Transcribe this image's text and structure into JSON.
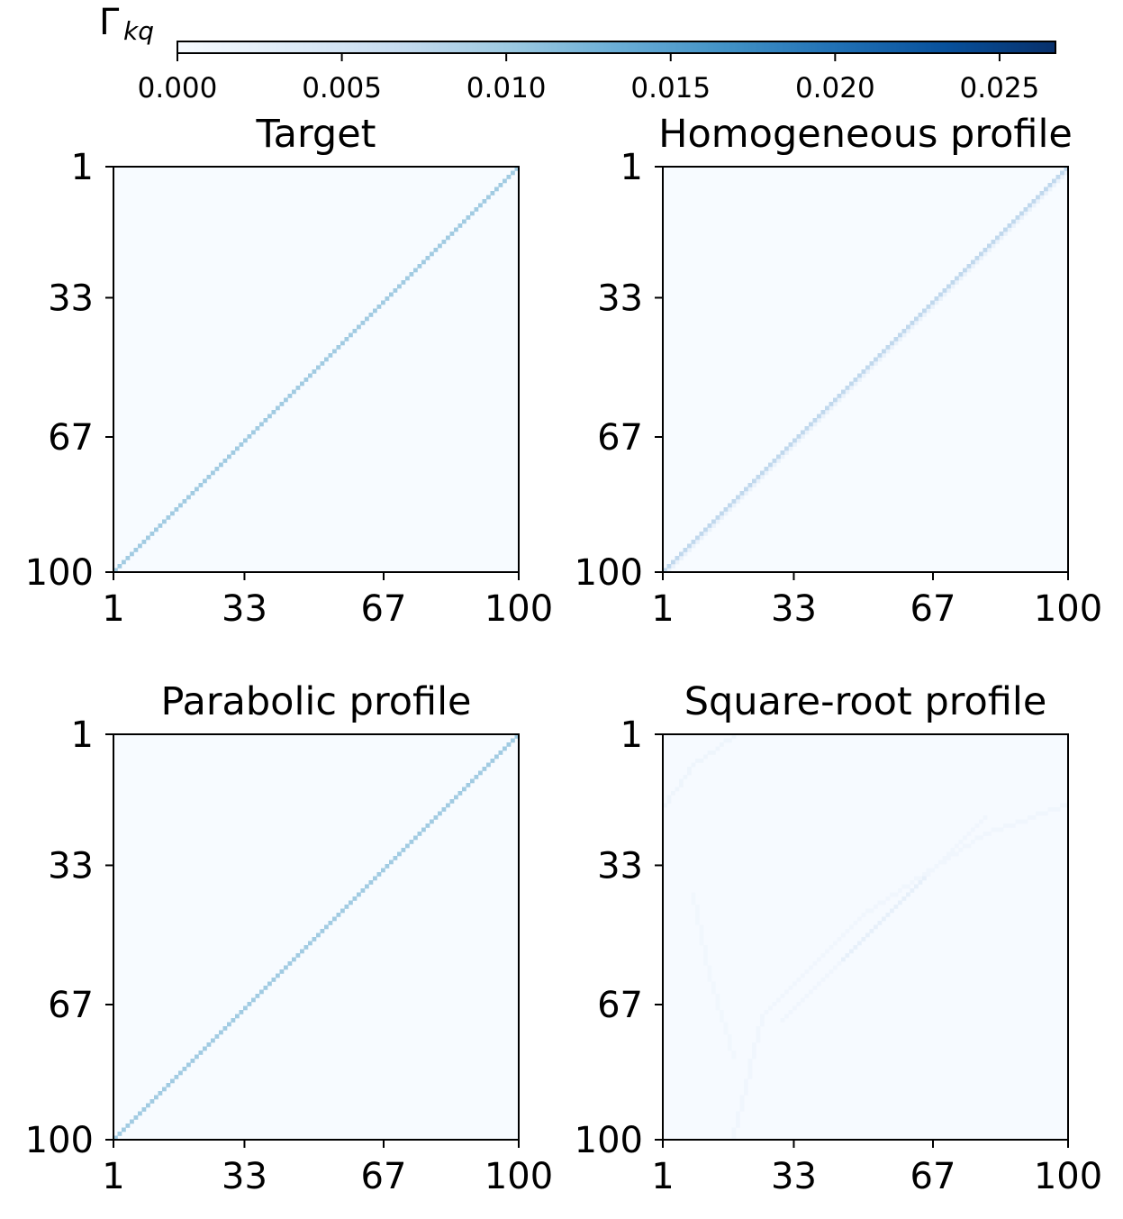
{
  "colorbar": {
    "label": "Γ",
    "label_subscript": "kq",
    "min": 0.0,
    "max": 0.0267,
    "ticks": [
      0.0,
      0.005,
      0.01,
      0.015,
      0.02,
      0.025
    ],
    "tick_labels": [
      "0.000",
      "0.005",
      "0.010",
      "0.015",
      "0.020",
      "0.025"
    ],
    "colormap": "Blues",
    "colors": {
      "low": "#f7fbff",
      "high": "#08306b"
    }
  },
  "chart_data": [
    {
      "type": "heatmap",
      "title": "Target",
      "matrix_size": 100,
      "x_ticks": [
        1,
        33,
        67,
        100
      ],
      "y_ticks": [
        1,
        33,
        67,
        100
      ],
      "y_inverted": true,
      "background_value": 0.0,
      "diagonal": {
        "kind": "main",
        "value": 0.0098
      },
      "off_diagonal_band": null,
      "arcs": []
    },
    {
      "type": "heatmap",
      "title": "Homogeneous profile",
      "matrix_size": 100,
      "x_ticks": [
        1,
        33,
        67,
        100
      ],
      "y_ticks": [
        1,
        33,
        67,
        100
      ],
      "y_inverted": true,
      "background_value": 0.0,
      "diagonal": {
        "kind": "main",
        "value": 0.0072
      },
      "off_diagonal_band": {
        "offset": 1,
        "value": 0.0018
      },
      "arcs": []
    },
    {
      "type": "heatmap",
      "title": "Parabolic profile",
      "matrix_size": 100,
      "x_ticks": [
        1,
        33,
        67,
        100
      ],
      "y_ticks": [
        1,
        33,
        67,
        100
      ],
      "y_inverted": true,
      "background_value": 0.0,
      "diagonal": {
        "kind": "main",
        "value": 0.0098
      },
      "off_diagonal_band": null,
      "arcs": []
    },
    {
      "type": "heatmap",
      "title": "Square-root profile",
      "matrix_size": 100,
      "x_ticks": [
        1,
        33,
        67,
        100
      ],
      "y_ticks": [
        1,
        33,
        67,
        100
      ],
      "y_inverted": true,
      "background_value": 0.0002,
      "diagonal": {
        "kind": "faint-center",
        "value": 0.0022,
        "from": 45,
        "to": 65
      },
      "off_diagonal_band": null,
      "arcs": [
        {
          "points": [
            [
              1,
              18
            ],
            [
              8,
              8
            ],
            [
              18,
              1
            ]
          ],
          "value": 0.0012
        },
        {
          "points": [
            [
              18,
              100
            ],
            [
              25,
              70
            ],
            [
              50,
              45
            ],
            [
              80,
              25
            ],
            [
              100,
              18
            ]
          ],
          "value": 0.001
        },
        {
          "points": [
            [
              8,
              40
            ],
            [
              12,
              60
            ],
            [
              18,
              80
            ]
          ],
          "value": 0.0008
        }
      ]
    }
  ]
}
